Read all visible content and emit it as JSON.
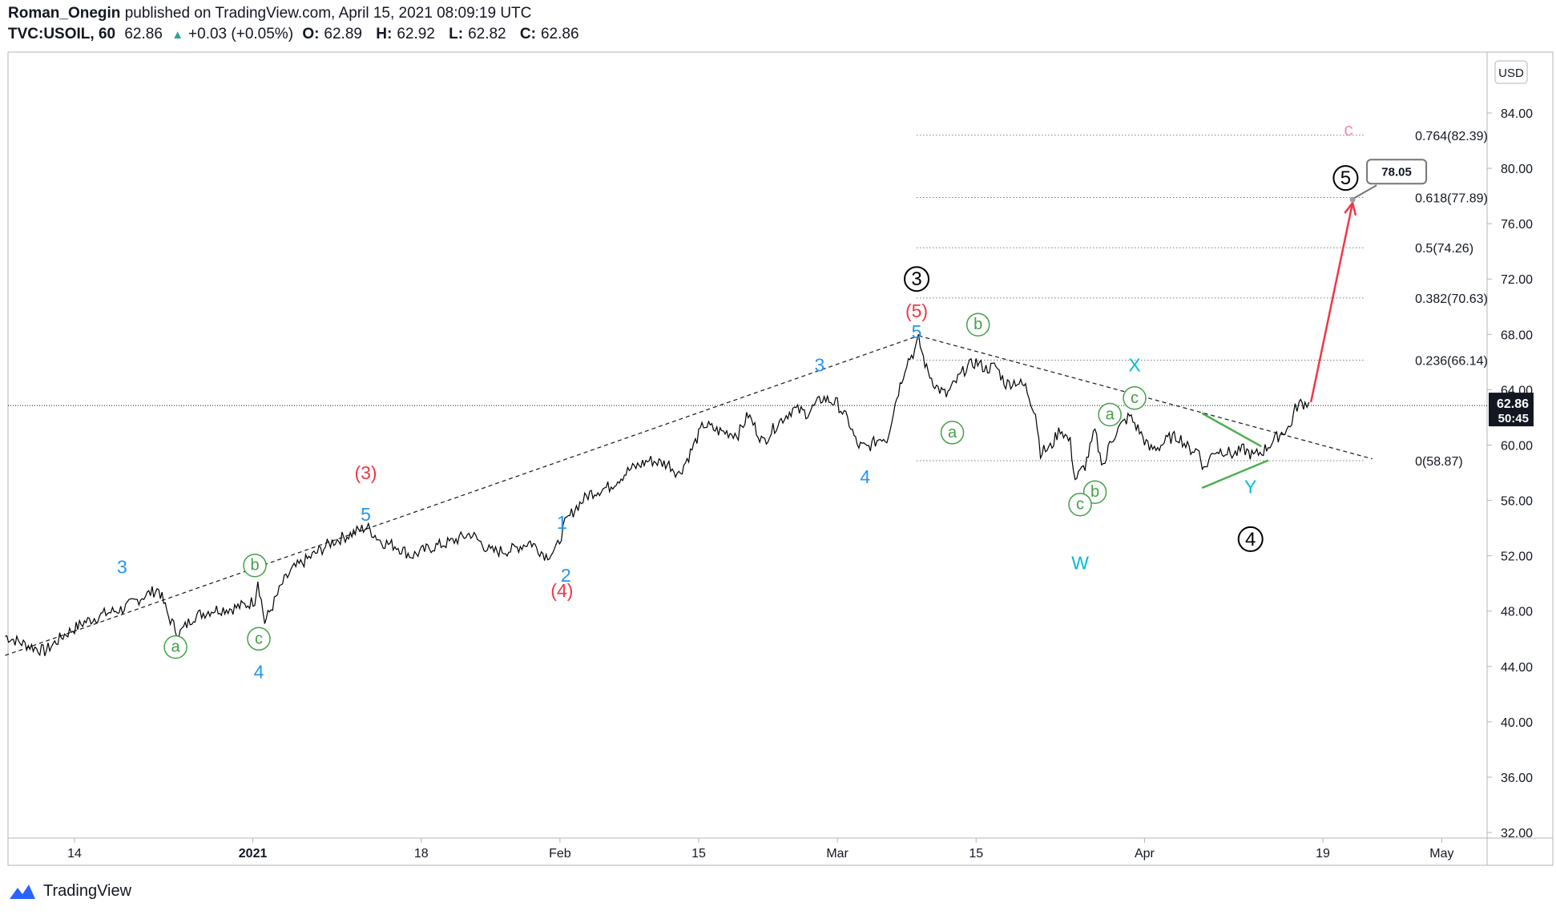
{
  "header": {
    "author": "Roman_Onegin",
    "published": "published on TradingView.com, April 15, 2021 08:09:19 UTC",
    "symbol": "TVC:USOIL, 60",
    "last": "62.86",
    "change": "+0.03 (+0.05%)",
    "open_label": "O:",
    "open": "62.89",
    "high_label": "H:",
    "high": "62.92",
    "low_label": "L:",
    "low": "62.82",
    "close_label": "C:",
    "close": "62.86"
  },
  "footer": {
    "brand": "TradingView",
    "logo_icon": "tradingview-logo-icon"
  },
  "colors": {
    "price": "#000000",
    "blue": "#2196f3",
    "red": "#f23645",
    "green": "#43a047",
    "cyan": "#00bcd4",
    "pink": "#f48fb1",
    "arrow": "#f23645",
    "triangle": "#4caf50"
  },
  "chart_data": {
    "type": "line",
    "currency": "USD",
    "y_ticks": [
      "84.00",
      "80.00",
      "76.00",
      "72.00",
      "68.00",
      "64.00",
      "60.00",
      "56.00",
      "52.00",
      "48.00",
      "44.00",
      "40.00",
      "36.00",
      "32.00"
    ],
    "ylim": [
      30.6,
      86.0
    ],
    "x_ticks": [
      {
        "label": "14",
        "day": 0
      },
      {
        "label": "2021",
        "day": 18
      },
      {
        "label": "18",
        "day": 35
      },
      {
        "label": "Feb",
        "day": 49
      },
      {
        "label": "15",
        "day": 63
      },
      {
        "label": "Mar",
        "day": 77
      },
      {
        "label": "15",
        "day": 91
      },
      {
        "label": "Apr",
        "day": 108
      },
      {
        "label": "19",
        "day": 126
      },
      {
        "label": "May",
        "day": 138
      }
    ],
    "x_range_days": [
      -7,
      144
    ],
    "price_path": [
      [
        -7,
        46.2
      ],
      [
        -5,
        45.6
      ],
      [
        -3,
        45.1
      ],
      [
        -1,
        46.3
      ],
      [
        1,
        47.2
      ],
      [
        3,
        47.8
      ],
      [
        5,
        48.2
      ],
      [
        7,
        49.1
      ],
      [
        8.5,
        49.6
      ],
      [
        9.5,
        47.6
      ],
      [
        10.5,
        46.3
      ],
      [
        12,
        47.6
      ],
      [
        14,
        48.1
      ],
      [
        16,
        48.2
      ],
      [
        17.5,
        48.5
      ],
      [
        18.2,
        48.8
      ],
      [
        18.5,
        50.3
      ],
      [
        19.2,
        47.2
      ],
      [
        20,
        48.4
      ],
      [
        21,
        50.0
      ],
      [
        22,
        51.0
      ],
      [
        24,
        52.0
      ],
      [
        26,
        53.0
      ],
      [
        28,
        53.6
      ],
      [
        29.5,
        54.1
      ],
      [
        31,
        53.0
      ],
      [
        32.5,
        52.7
      ],
      [
        34,
        52.0
      ],
      [
        36,
        52.6
      ],
      [
        38,
        53.0
      ],
      [
        40,
        53.6
      ],
      [
        42,
        52.3
      ],
      [
        44,
        52.4
      ],
      [
        46,
        53.0
      ],
      [
        47.6,
        52.0
      ],
      [
        48.6,
        52.4
      ],
      [
        49.5,
        54.3
      ],
      [
        50.5,
        55.4
      ],
      [
        52,
        56.5
      ],
      [
        54,
        57.0
      ],
      [
        56,
        58.2
      ],
      [
        58,
        58.9
      ],
      [
        60,
        58.6
      ],
      [
        61,
        57.9
      ],
      [
        62,
        59.2
      ],
      [
        63.5,
        61.5
      ],
      [
        65,
        61.0
      ],
      [
        67,
        60.8
      ],
      [
        68,
        62.2
      ],
      [
        69.5,
        60.2
      ],
      [
        71,
        61.6
      ],
      [
        72.5,
        62.6
      ],
      [
        74,
        62.3
      ],
      [
        75.5,
        63.4
      ],
      [
        77,
        63.0
      ],
      [
        78.2,
        61.6
      ],
      [
        79,
        60.0
      ],
      [
        80,
        59.8
      ],
      [
        81.5,
        60.6
      ],
      [
        82,
        60.4
      ],
      [
        83,
        63.5
      ],
      [
        84,
        66.0
      ],
      [
        84.8,
        66.8
      ],
      [
        85.2,
        67.6
      ],
      [
        86,
        65.5
      ],
      [
        87,
        64.2
      ],
      [
        88,
        63.6
      ],
      [
        89,
        64.6
      ],
      [
        90,
        65.6
      ],
      [
        91,
        66.0
      ],
      [
        92,
        65.5
      ],
      [
        93,
        65.7
      ],
      [
        94,
        64.4
      ],
      [
        95,
        64.6
      ],
      [
        96,
        64.2
      ],
      [
        97,
        62.3
      ],
      [
        97.5,
        59.5
      ],
      [
        98.5,
        59.8
      ],
      [
        99.5,
        61.2
      ],
      [
        100.5,
        60.2
      ],
      [
        101,
        57.5
      ],
      [
        102,
        58.5
      ],
      [
        103,
        61.0
      ],
      [
        103.5,
        59.2
      ],
      [
        104,
        58.6
      ],
      [
        104.5,
        60.2
      ],
      [
        105.5,
        61.3
      ],
      [
        106.5,
        62.1
      ],
      [
        107.5,
        61.0
      ],
      [
        108.5,
        59.7
      ],
      [
        109.5,
        59.9
      ],
      [
        110.5,
        60.5
      ],
      [
        111.5,
        60.6
      ],
      [
        112.5,
        59.7
      ],
      [
        113.5,
        59.6
      ],
      [
        114,
        58.2
      ],
      [
        115,
        59.6
      ],
      [
        116,
        59.6
      ],
      [
        117,
        59.3
      ],
      [
        118,
        59.7
      ],
      [
        119,
        59.2
      ],
      [
        120,
        59.6
      ],
      [
        121,
        60.3
      ],
      [
        122,
        61.0
      ],
      [
        122.7,
        61.3
      ],
      [
        123.2,
        62.6
      ],
      [
        123.6,
        63.0
      ],
      [
        124.2,
        63.0
      ],
      [
        124.6,
        63.1
      ]
    ],
    "trendline_rising": [
      [
        -7,
        44.8
      ],
      [
        85.2,
        67.9
      ]
    ],
    "trendline_falling": [
      [
        85.2,
        67.9
      ],
      [
        131,
        59.0
      ]
    ],
    "fib_levels": [
      {
        "label": "0.764(82.39)",
        "value": 82.39
      },
      {
        "label": "0.618(77.89)",
        "value": 77.89
      },
      {
        "label": "0.5(74.26)",
        "value": 74.26
      },
      {
        "label": "0.382(70.63)",
        "value": 70.63
      },
      {
        "label": "0.236(66.14)",
        "value": 66.14
      },
      {
        "label": "0(58.87)",
        "value": 58.87
      }
    ],
    "fib_x_range": [
      85,
      129
    ],
    "last_price": "62.86",
    "last_price_value": 62.86,
    "countdown": "50:45",
    "target_label": "78.05",
    "projection_arrow": [
      [
        124.8,
        63.1
      ],
      [
        129,
        77.5
      ]
    ],
    "triangle_lines": [
      [
        [
          113.8,
          62.3
        ],
        [
          119.8,
          59.9
        ]
      ],
      [
        [
          113.8,
          56.9
        ],
        [
          120.5,
          58.9
        ]
      ]
    ],
    "wave_labels": [
      {
        "text": "3",
        "day": 4.8,
        "price": 51.2,
        "color": "blue",
        "circle": false
      },
      {
        "text": "a",
        "day": 10.2,
        "price": 45.4,
        "color": "green",
        "circle": true
      },
      {
        "text": "b",
        "day": 18.2,
        "price": 51.3,
        "color": "green",
        "circle": true
      },
      {
        "text": "c",
        "day": 18.6,
        "price": 46.0,
        "color": "green",
        "circle": true
      },
      {
        "text": "4",
        "day": 18.6,
        "price": 43.6,
        "color": "blue",
        "circle": false
      },
      {
        "text": "(3)",
        "day": 29.4,
        "price": 58.0,
        "color": "red",
        "circle": false
      },
      {
        "text": "5",
        "day": 29.4,
        "price": 55.0,
        "color": "blue",
        "circle": false
      },
      {
        "text": "1",
        "day": 49.2,
        "price": 54.4,
        "color": "blue",
        "circle": false
      },
      {
        "text": "2",
        "day": 49.6,
        "price": 50.6,
        "color": "blue",
        "circle": false
      },
      {
        "text": "(4)",
        "day": 49.2,
        "price": 49.5,
        "color": "red",
        "circle": false
      },
      {
        "text": "3",
        "day": 75.2,
        "price": 65.8,
        "color": "blue",
        "circle": false
      },
      {
        "text": "4",
        "day": 79.8,
        "price": 57.7,
        "color": "blue",
        "circle": false
      },
      {
        "text": "3",
        "day": 85.0,
        "price": 72.0,
        "color": "black",
        "circle": true
      },
      {
        "text": "(5)",
        "day": 85.0,
        "price": 69.7,
        "color": "red",
        "circle": false
      },
      {
        "text": "5",
        "day": 85.0,
        "price": 68.2,
        "color": "blue",
        "circle": false
      },
      {
        "text": "b",
        "day": 91.2,
        "price": 68.7,
        "color": "green",
        "circle": true
      },
      {
        "text": "a",
        "day": 88.6,
        "price": 60.9,
        "color": "green",
        "circle": true
      },
      {
        "text": "a",
        "day": 104.5,
        "price": 62.2,
        "color": "green",
        "circle": true
      },
      {
        "text": "X",
        "day": 107.0,
        "price": 65.8,
        "color": "cyan",
        "circle": false
      },
      {
        "text": "c",
        "day": 107.0,
        "price": 63.4,
        "color": "green",
        "circle": true
      },
      {
        "text": "b",
        "day": 103.0,
        "price": 56.6,
        "color": "green",
        "circle": true
      },
      {
        "text": "c",
        "day": 101.5,
        "price": 55.7,
        "color": "green",
        "circle": true
      },
      {
        "text": "W",
        "day": 101.5,
        "price": 51.5,
        "color": "cyan",
        "circle": false
      },
      {
        "text": "Y",
        "day": 118.7,
        "price": 57.0,
        "color": "cyan",
        "circle": false
      },
      {
        "text": "4",
        "day": 118.7,
        "price": 53.2,
        "color": "black",
        "circle": true
      },
      {
        "text": "5",
        "day": 128.3,
        "price": 79.3,
        "color": "black",
        "circle": true
      },
      {
        "text": "c",
        "day": 128.6,
        "price": 82.8,
        "color": "pink",
        "circle": false
      }
    ]
  }
}
